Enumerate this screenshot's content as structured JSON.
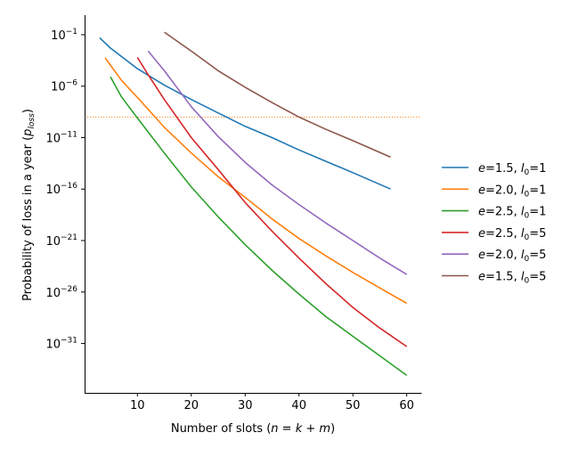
{
  "chart_data": {
    "type": "line",
    "title": "",
    "xlabel": "Number of slots (n = k + m)",
    "ylabel": "Probability of loss in a year (p_loss)",
    "xscale": "linear",
    "yscale": "log",
    "xlim": [
      0.2,
      62.7
    ],
    "ylim_log10": [
      -35.8,
      0.9
    ],
    "xticks": [
      10,
      20,
      30,
      40,
      50,
      60
    ],
    "yticks_log10": [
      -1,
      -6,
      -11,
      -16,
      -21,
      -26,
      -31
    ],
    "grid": false,
    "legend_placement": "outside-right",
    "reference_line": {
      "y_log10": -9,
      "color": "#ff7f0e",
      "style": "dotted"
    },
    "series": [
      {
        "name": "e=1.5, l0=1",
        "e": "1.5",
        "l0": "1",
        "color": "#1f77b4",
        "x": [
          3,
          5,
          10,
          15,
          20,
          25,
          30,
          35,
          40,
          45,
          50,
          57
        ],
        "log10_y": [
          -1.3,
          -2.3,
          -4.3,
          -5.9,
          -7.3,
          -8.6,
          -9.9,
          -11.0,
          -12.2,
          -13.3,
          -14.4,
          -16.0
        ]
      },
      {
        "name": "e=2.0, l0=1",
        "e": "2.0",
        "l0": "1",
        "color": "#ff7f0e",
        "x": [
          4,
          7,
          10,
          15,
          20,
          25,
          30,
          35,
          40,
          45,
          50,
          55,
          60
        ],
        "log10_y": [
          -3.25,
          -5.4,
          -7.1,
          -10.0,
          -12.5,
          -14.8,
          -16.8,
          -18.9,
          -20.8,
          -22.5,
          -24.1,
          -25.6,
          -27.1
        ]
      },
      {
        "name": "e=2.5, l0=1",
        "e": "2.5",
        "l0": "1",
        "color": "#2ca02c",
        "x": [
          5,
          7,
          10,
          15,
          20,
          25,
          30,
          35,
          40,
          45,
          50,
          55,
          60
        ],
        "log10_y": [
          -5.1,
          -7.0,
          -9.1,
          -12.5,
          -15.8,
          -18.7,
          -21.4,
          -23.9,
          -26.2,
          -28.4,
          -30.3,
          -32.2,
          -34.1
        ]
      },
      {
        "name": "e=2.5, l0=5",
        "e": "2.5",
        "l0": "5",
        "color": "#d62728",
        "x": [
          10,
          12,
          15,
          20,
          25,
          30,
          35,
          40,
          45,
          50,
          55,
          60
        ],
        "log10_y": [
          -3.2,
          -4.9,
          -7.3,
          -11.0,
          -14.1,
          -17.3,
          -20.1,
          -22.7,
          -25.2,
          -27.5,
          -29.5,
          -31.3
        ]
      },
      {
        "name": "e=2.0, l0=5",
        "e": "2.0",
        "l0": "5",
        "color": "#9467bd",
        "x": [
          12,
          15,
          20,
          25,
          30,
          35,
          40,
          45,
          50,
          55,
          60
        ],
        "log10_y": [
          -2.6,
          -4.5,
          -8.0,
          -10.9,
          -13.4,
          -15.6,
          -17.5,
          -19.3,
          -21.0,
          -22.7,
          -24.3
        ]
      },
      {
        "name": "e=1.5, l0=5",
        "e": "1.5",
        "l0": "5",
        "color": "#8c564b",
        "x": [
          15,
          20,
          25,
          30,
          35,
          40,
          45,
          50,
          57
        ],
        "log10_y": [
          -0.75,
          -2.6,
          -4.5,
          -6.1,
          -7.6,
          -9.0,
          -10.2,
          -11.3,
          -12.9
        ]
      }
    ]
  },
  "labels": {
    "xlabel_main": "Number of slots (",
    "xlabel_n": "n",
    "xlabel_eq": " = ",
    "xlabel_k": "k",
    "xlabel_plus": " + ",
    "xlabel_m": "m",
    "xlabel_close": ")",
    "ylabel_main": "Probability of loss in a year (",
    "ylabel_p": "p",
    "ylabel_sub": "loss",
    "ylabel_close": ")",
    "tick_base": "10"
  }
}
